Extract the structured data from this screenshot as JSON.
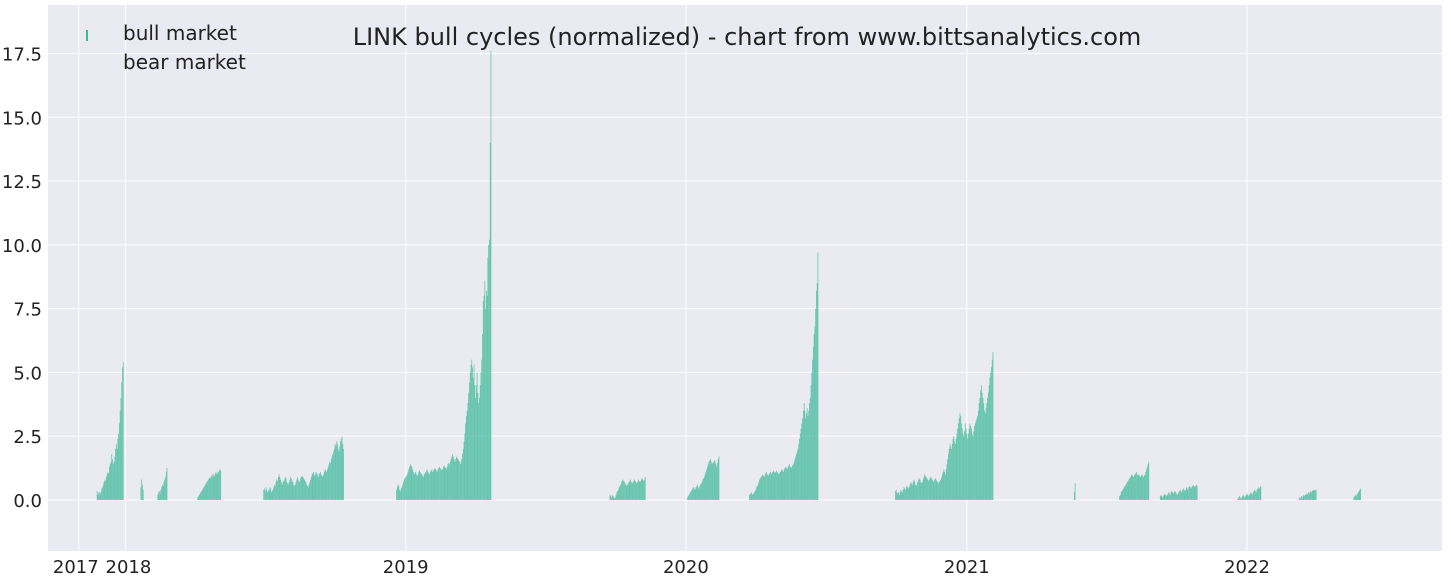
{
  "chart_data": {
    "type": "bar",
    "title": "LINK bull cycles (normalized)  - chart from www.bittsanalytics.com",
    "xlabel": "",
    "ylabel": "",
    "x_ticks": [
      {
        "date": "2017-11-01",
        "label": "2017"
      },
      {
        "date": "2018-01-01",
        "label": "2018"
      },
      {
        "date": "2019-01-01",
        "label": "2019"
      },
      {
        "date": "2020-01-01",
        "label": "2020"
      },
      {
        "date": "2021-01-01",
        "label": "2021"
      },
      {
        "date": "2022-01-01",
        "label": "2022"
      }
    ],
    "y_ticks": [
      0.0,
      2.5,
      5.0,
      7.5,
      10.0,
      12.5,
      15.0,
      17.5
    ],
    "y_tick_labels": [
      "0.0",
      "2.5",
      "5.0",
      "7.5",
      "10.0",
      "12.5",
      "15.0",
      "17.5"
    ],
    "ylim": [
      -2.0,
      19.4
    ],
    "xlim": [
      "2017-09-22",
      "2022-09-12"
    ],
    "grid": true,
    "legend": {
      "placement": "top-left",
      "entries": [
        {
          "label": "bull market",
          "color": "#3cb89a"
        },
        {
          "label": "bear market",
          "color": null
        }
      ]
    },
    "colors": {
      "bull": "#3cb89a",
      "background": "#eaeaf2",
      "grid": "#ffffff"
    },
    "series": [
      {
        "name": "bull market",
        "segments": [
          {
            "start": "2017-11-25",
            "end": "2018-01-07",
            "values": [
              0.35,
              0.2,
              0.28,
              0.3,
              0.22,
              0.32,
              0.45,
              0.5,
              0.6,
              0.7,
              0.8,
              0.75,
              0.9,
              1.0,
              1.1,
              1.05,
              1.3,
              1.4,
              1.5,
              1.8,
              1.6,
              1.4,
              1.5,
              1.7,
              2.0,
              2.2,
              2.0,
              2.4,
              2.6,
              3.0,
              3.5,
              4.0,
              4.6,
              5.2,
              5.4
            ]
          },
          {
            "start": "2018-01-21",
            "end": "2018-01-24",
            "values": [
              0.5,
              0.8,
              0.6,
              0.4
            ]
          },
          {
            "start": "2018-02-12",
            "end": "2018-02-24",
            "values": [
              0.2,
              0.3,
              0.35,
              0.25,
              0.4,
              0.5,
              0.6,
              0.55,
              0.7,
              0.8,
              0.9,
              1.1,
              1.25
            ]
          },
          {
            "start": "2018-04-05",
            "end": "2018-05-05",
            "values": [
              0.1,
              0.15,
              0.2,
              0.25,
              0.3,
              0.35,
              0.4,
              0.45,
              0.5,
              0.55,
              0.6,
              0.65,
              0.7,
              0.75,
              0.8,
              0.85,
              0.9,
              0.85,
              0.95,
              1.0,
              0.9,
              1.0,
              0.95,
              1.05,
              1.1,
              1.0,
              1.05,
              1.1,
              1.15,
              1.2,
              1.15
            ]
          },
          {
            "start": "2018-06-30",
            "end": "2018-11-22",
            "values": [
              0.4,
              0.45,
              0.35,
              0.5,
              0.4,
              0.3,
              0.35,
              0.4,
              0.5,
              0.45,
              0.3,
              0.35,
              0.4,
              0.5,
              0.6,
              0.55,
              0.7,
              0.8,
              0.75,
              0.9,
              1.0,
              0.9,
              0.8,
              0.7,
              0.6,
              0.7,
              0.75,
              0.8,
              0.9,
              0.85,
              0.7,
              0.65,
              0.6,
              0.7,
              0.8,
              0.9,
              0.85,
              0.75,
              0.7,
              0.6,
              0.55,
              0.6,
              0.7,
              0.8,
              0.9,
              0.8,
              0.7,
              0.75,
              0.85,
              0.9,
              0.95,
              0.9,
              0.85,
              0.8,
              0.75,
              0.7,
              0.6,
              0.55,
              0.5,
              0.6,
              0.7,
              0.8,
              0.9,
              1.0,
              1.05,
              1.1,
              1.0,
              0.95,
              1.1,
              1.05,
              1.0,
              0.9,
              1.0,
              1.05,
              1.1,
              1.0,
              0.95,
              0.9,
              1.0,
              1.1,
              1.2,
              1.15,
              1.1,
              1.2,
              1.3,
              1.4,
              1.5,
              1.45,
              1.6,
              1.7,
              1.8,
              1.9,
              2.0,
              2.2,
              2.1,
              2.3,
              2.2,
              2.0,
              1.9,
              2.1,
              2.3,
              2.4,
              2.5,
              2.2,
              2.0
            ]
          },
          {
            "start": "2018-12-20",
            "end": "2019-06-26",
            "values": [
              0.4,
              0.5,
              0.6,
              0.55,
              0.4,
              0.35,
              0.45,
              0.5,
              0.6,
              0.7,
              0.8,
              0.85,
              0.9,
              0.95,
              1.0,
              1.1,
              1.2,
              1.3,
              1.4,
              1.35,
              1.3,
              1.2,
              1.1,
              1.0,
              1.05,
              1.1,
              1.0,
              0.95,
              1.0,
              1.1,
              1.15,
              1.1,
              1.05,
              1.0,
              0.95,
              0.9,
              1.0,
              1.05,
              1.1,
              1.15,
              1.2,
              1.1,
              1.05,
              1.0,
              1.1,
              1.15,
              1.2,
              1.1,
              1.15,
              1.2,
              1.25,
              1.2,
              1.15,
              1.1,
              1.2,
              1.25,
              1.3,
              1.25,
              1.2,
              1.15,
              1.2,
              1.3,
              1.35,
              1.3,
              1.25,
              1.2,
              1.3,
              1.4,
              1.45,
              1.4,
              1.5,
              1.6,
              1.7,
              1.8,
              1.7,
              1.6,
              1.5,
              1.6,
              1.7,
              1.65,
              1.6,
              1.55,
              1.5,
              1.4,
              1.5,
              1.6,
              1.8,
              2.0,
              2.3,
              2.6,
              3.0,
              3.3,
              3.5,
              3.8,
              4.2,
              4.6,
              5.0,
              5.3,
              5.5,
              5.2,
              4.8,
              5.3,
              4.5,
              4.0,
              4.5,
              5.0,
              4.2,
              3.8,
              4.0,
              4.5,
              5.0,
              5.5,
              6.5,
              7.8,
              8.0,
              8.6,
              7.5,
              8.2,
              8.0,
              9.5,
              10.0,
              10.2,
              14.0,
              17.6
            ]
          },
          {
            "start": "2019-09-24",
            "end": "2019-11-09",
            "values": [
              0.2,
              0.15,
              0.1,
              0.2,
              0.15,
              0.1,
              0.05,
              0.1,
              0.2,
              0.3,
              0.35,
              0.4,
              0.5,
              0.55,
              0.6,
              0.7,
              0.75,
              0.8,
              0.75,
              0.7,
              0.65,
              0.6,
              0.55,
              0.6,
              0.65,
              0.7,
              0.75,
              0.8,
              0.7,
              0.65,
              0.7,
              0.75,
              0.8,
              0.75,
              0.7,
              0.65,
              0.7,
              0.8,
              0.75,
              0.7,
              0.75,
              0.8,
              0.85,
              0.8,
              0.75,
              0.8,
              0.9
            ]
          },
          {
            "start": "2020-01-03",
            "end": "2020-03-04",
            "values": [
              0.1,
              0.15,
              0.2,
              0.25,
              0.3,
              0.35,
              0.4,
              0.45,
              0.5,
              0.45,
              0.4,
              0.5,
              0.55,
              0.6,
              0.5,
              0.45,
              0.55,
              0.6,
              0.65,
              0.7,
              0.8,
              0.85,
              0.9,
              1.0,
              1.1,
              1.2,
              1.3,
              1.4,
              1.5,
              1.55,
              1.6,
              1.5,
              1.4,
              1.45,
              1.5,
              1.55,
              1.5,
              1.4,
              1.3,
              1.45,
              1.6,
              1.7
            ]
          },
          {
            "start": "2020-03-24",
            "end": "2020-08-16",
            "values": [
              0.2,
              0.25,
              0.3,
              0.25,
              0.2,
              0.25,
              0.3,
              0.35,
              0.4,
              0.5,
              0.55,
              0.6,
              0.7,
              0.8,
              0.85,
              0.9,
              0.95,
              1.0,
              0.95,
              0.9,
              1.0,
              1.05,
              1.1,
              1.0,
              0.95,
              1.0,
              1.05,
              1.1,
              1.0,
              1.05,
              1.1,
              1.15,
              1.1,
              1.05,
              1.1,
              1.15,
              1.1,
              1.05,
              1.0,
              1.05,
              1.1,
              1.15,
              1.2,
              1.15,
              1.1,
              1.2,
              1.25,
              1.3,
              1.25,
              1.2,
              1.3,
              1.35,
              1.4,
              1.3,
              1.25,
              1.3,
              1.35,
              1.4,
              1.5,
              1.6,
              1.7,
              1.8,
              1.9,
              2.0,
              2.2,
              2.4,
              2.6,
              2.8,
              3.0,
              3.2,
              3.5,
              3.8,
              3.5,
              3.2,
              3.4,
              3.6,
              3.3,
              3.5,
              3.8,
              4.0,
              4.5,
              5.0,
              5.5,
              6.0,
              6.5,
              6.8,
              7.5,
              8.2,
              8.5,
              9.7
            ]
          },
          {
            "start": "2020-09-30",
            "end": "2021-05-10",
            "values": [
              0.35,
              0.4,
              0.3,
              0.25,
              0.3,
              0.2,
              0.3,
              0.4,
              0.35,
              0.3,
              0.4,
              0.5,
              0.45,
              0.4,
              0.5,
              0.55,
              0.5,
              0.45,
              0.5,
              0.6,
              0.7,
              0.65,
              0.6,
              0.7,
              0.8,
              0.75,
              0.6,
              0.55,
              0.6,
              0.7,
              0.8,
              0.85,
              0.8,
              0.7,
              0.65,
              0.7,
              0.8,
              0.9,
              1.0,
              0.95,
              0.9,
              0.85,
              0.8,
              0.75,
              0.8,
              0.85,
              0.9,
              0.85,
              0.8,
              0.75,
              0.7,
              0.8,
              0.85,
              0.8,
              0.75,
              0.7,
              0.65,
              0.7,
              0.75,
              0.8,
              0.9,
              1.0,
              1.1,
              1.2,
              1.1,
              1.0,
              1.2,
              1.4,
              1.6,
              1.8,
              2.0,
              2.2,
              2.1,
              2.0,
              2.2,
              2.4,
              2.5,
              2.3,
              2.2,
              2.4,
              2.6,
              2.8,
              3.0,
              3.2,
              3.4,
              3.3,
              3.0,
              2.8,
              2.6,
              2.5,
              2.7,
              3.0,
              2.8,
              2.6,
              2.4,
              2.6,
              2.8,
              3.0,
              2.9,
              2.8,
              2.6,
              2.5,
              2.7,
              2.9,
              3.0,
              3.1,
              3.2,
              3.3,
              3.5,
              3.8,
              4.0,
              4.3,
              4.5,
              4.2,
              4.0,
              3.8,
              3.5,
              3.4,
              3.6,
              3.8,
              4.0,
              4.2,
              4.5,
              4.8,
              5.0,
              5.2,
              5.5,
              5.8
            ]
          },
          {
            "start": "2021-05-21",
            "end": "2021-05-22",
            "values": [
              0.3,
              0.65
            ]
          },
          {
            "start": "2021-07-19",
            "end": "2021-09-01",
            "values": [
              0.15,
              0.2,
              0.3,
              0.35,
              0.4,
              0.45,
              0.5,
              0.55,
              0.6,
              0.65,
              0.7,
              0.75,
              0.8,
              0.85,
              0.9,
              0.95,
              1.0,
              0.95,
              0.9,
              0.95,
              1.0,
              1.05,
              1.1,
              1.0,
              0.95,
              1.0,
              0.95,
              0.9,
              0.95,
              1.0,
              0.95,
              0.9,
              0.95,
              1.0,
              1.1,
              1.2,
              1.3,
              1.4,
              1.5
            ]
          },
          {
            "start": "2021-09-10",
            "end": "2021-10-31",
            "values": [
              0.15,
              0.2,
              0.15,
              0.1,
              0.15,
              0.2,
              0.25,
              0.2,
              0.15,
              0.2,
              0.25,
              0.3,
              0.25,
              0.2,
              0.3,
              0.35,
              0.3,
              0.25,
              0.3,
              0.35,
              0.3,
              0.25,
              0.2,
              0.25,
              0.3,
              0.35,
              0.4,
              0.35,
              0.3,
              0.4,
              0.45,
              0.4,
              0.35,
              0.4,
              0.5,
              0.45,
              0.4,
              0.5,
              0.55,
              0.5,
              0.45,
              0.5,
              0.55,
              0.6,
              0.55,
              0.5,
              0.55,
              0.6,
              0.55
            ]
          },
          {
            "start": "2021-12-20",
            "end": "2022-01-19",
            "values": [
              0.05,
              0.1,
              0.15,
              0.1,
              0.05,
              0.1,
              0.15,
              0.2,
              0.15,
              0.1,
              0.15,
              0.2,
              0.25,
              0.2,
              0.15,
              0.2,
              0.25,
              0.3,
              0.25,
              0.2,
              0.3,
              0.35,
              0.4,
              0.35,
              0.3,
              0.4,
              0.45,
              0.5,
              0.45,
              0.5,
              0.55
            ]
          },
          {
            "start": "2022-03-10",
            "end": "2022-04-01",
            "values": [
              0.1,
              0.05,
              0.1,
              0.15,
              0.1,
              0.15,
              0.2,
              0.15,
              0.2,
              0.25,
              0.2,
              0.25,
              0.3,
              0.25,
              0.3,
              0.35,
              0.3,
              0.35,
              0.4,
              0.35,
              0.4,
              0.38,
              0.4
            ]
          },
          {
            "start": "2022-05-20",
            "end": "2022-05-29",
            "values": [
              0.1,
              0.15,
              0.2,
              0.15,
              0.2,
              0.25,
              0.3,
              0.35,
              0.4,
              0.45
            ]
          }
        ]
      }
    ]
  }
}
